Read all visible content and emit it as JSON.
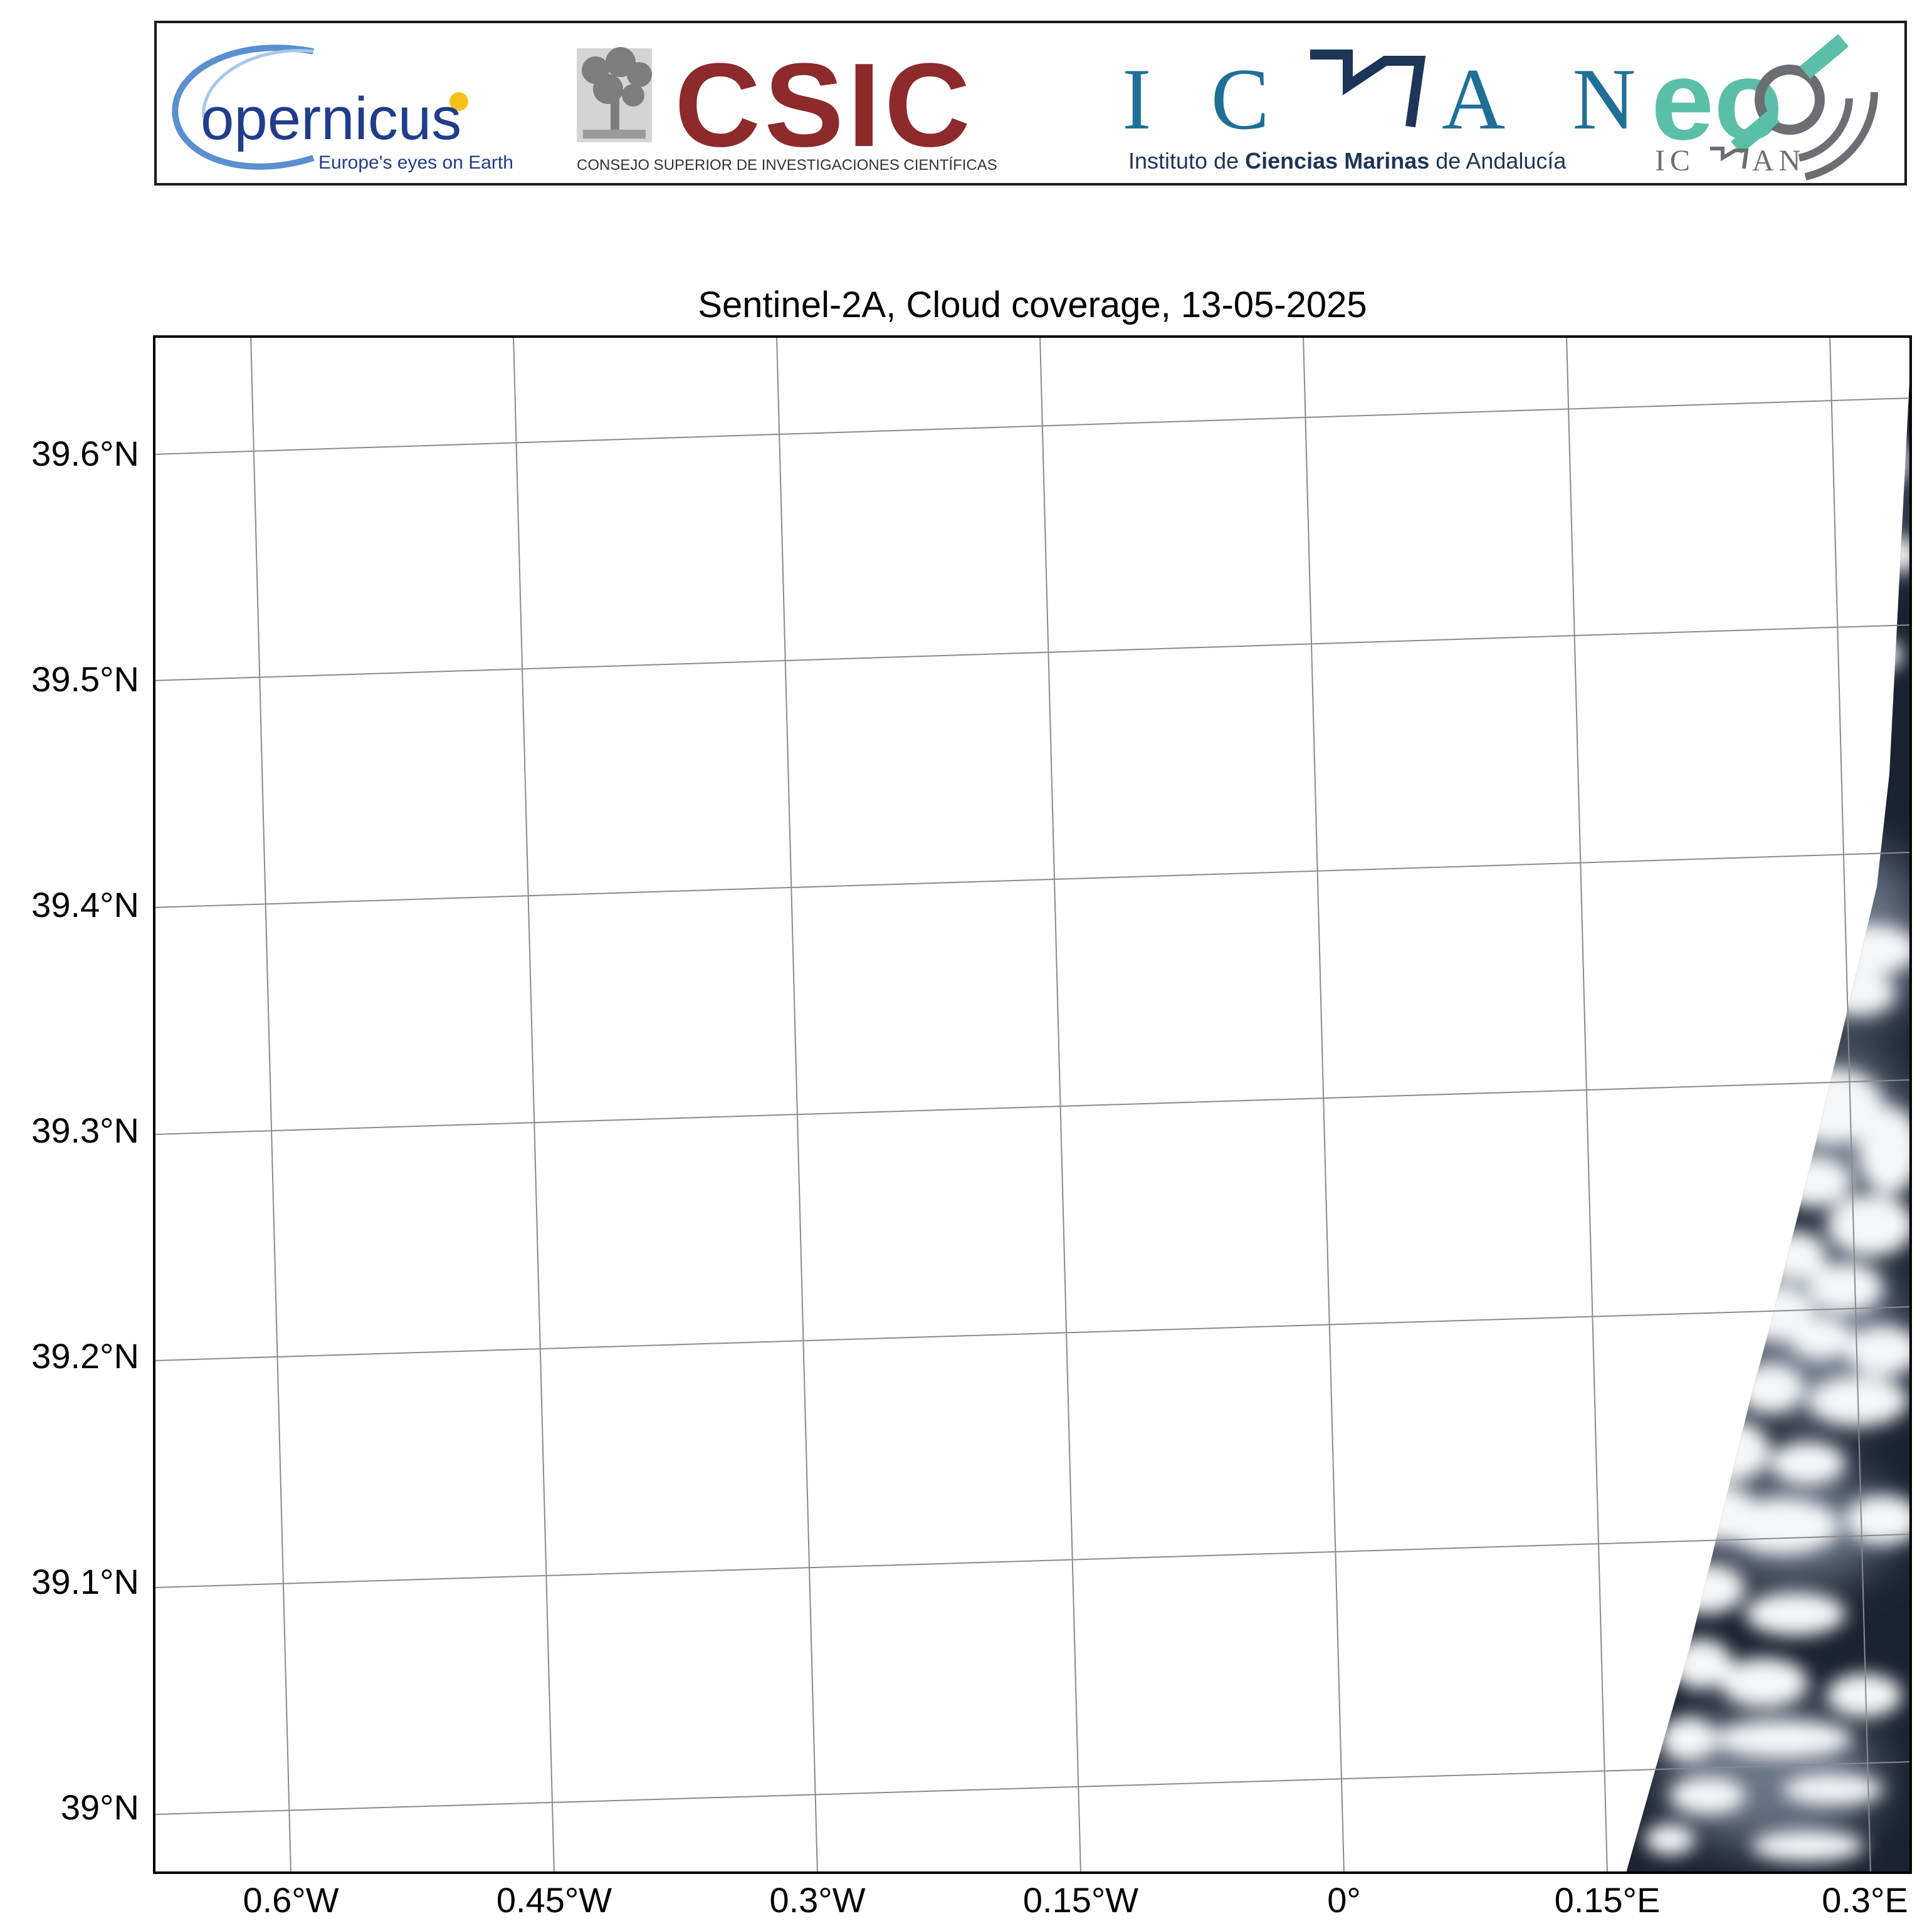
{
  "banner": {
    "copernicus": {
      "name": "opernicus",
      "tagline": "Europe's eyes on Earth"
    },
    "csic": {
      "name": "CSIC",
      "subtitle": "CONSEJO SUPERIOR DE INVESTIGACIONES CIENTÍFICAS"
    },
    "icman": {
      "name_left": "I C",
      "name_right": "A N",
      "subtitle_pre": "Instituto de ",
      "subtitle_bold": "Ciencias Marinas",
      "subtitle_post": " de Andalucía"
    },
    "eo": {
      "name": "eo",
      "subtitle_left": "IC",
      "subtitle_right": "AN"
    },
    "colors": {
      "copernicus_blue": "#1f3d8a",
      "copernicus_arc": "#5a8fd0",
      "copernicus_sun": "#f2c21b",
      "csic_red": "#8c2a2c",
      "icman_blue": "#1f6f96",
      "icman_navy": "#1d3557",
      "eo_teal": "#5bbfa8",
      "eo_gray": "#6b6f73"
    }
  },
  "map": {
    "title": "Sentinel-2A, Cloud coverage, 13-05-2025",
    "lat_labels": [
      "39.6°N",
      "39.5°N",
      "39.4°N",
      "39.3°N",
      "39.2°N",
      "39.1°N",
      "39°N"
    ],
    "lon_labels": [
      "0.6°W",
      "0.45°W",
      "0.3°W",
      "0.15°W",
      "0°",
      "0.15°E",
      "0.3°E"
    ],
    "colors": {
      "background": "#ffffff",
      "gridline": "#8a8a8a",
      "frame": "#000000",
      "sea": "#1b2230",
      "cloud": "#f4f6f8",
      "haze": "#a9b4c4"
    }
  }
}
